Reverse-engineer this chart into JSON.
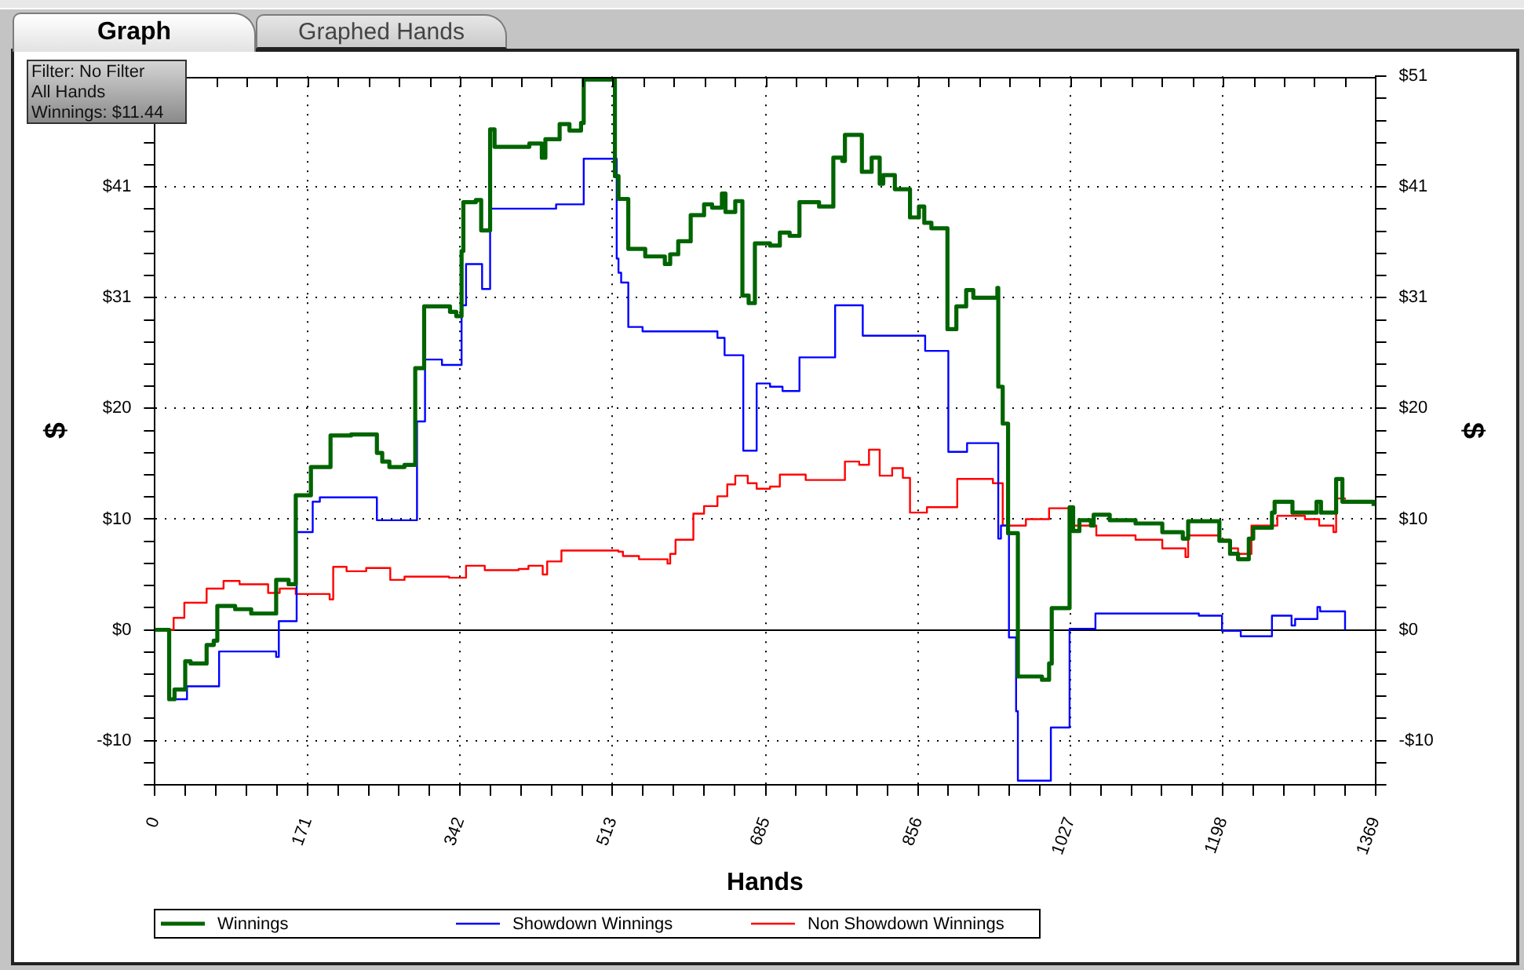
{
  "chart_data": {
    "type": "step",
    "annotations": [
      "Graph",
      "Graphed Hands",
      "Filter: No Filter",
      "All Hands",
      "Winnings: $11.44"
    ],
    "xlabel": "Hands",
    "ylabel": "$",
    "y2label": "$",
    "xlim": [
      0,
      1369
    ],
    "xticks": [
      0,
      {
        "value": 34.2,
        "label": null
      },
      {
        "value": 68.5,
        "label": null
      },
      {
        "value": 102.7,
        "label": null
      },
      {
        "value": 136.9,
        "label": null
      },
      171,
      {
        "value": 205.4,
        "label": null
      },
      {
        "value": 239.6,
        "label": null
      },
      {
        "value": 273.8,
        "label": null
      },
      {
        "value": 308.0,
        "label": null
      },
      342,
      {
        "value": 376.5,
        "label": null
      },
      {
        "value": 410.7,
        "label": null
      },
      {
        "value": 444.9,
        "label": null
      },
      {
        "value": 479.2,
        "label": null
      },
      513,
      {
        "value": 547.6,
        "label": null
      },
      {
        "value": 581.8,
        "label": null
      },
      {
        "value": 616.1,
        "label": null
      },
      {
        "value": 650.3,
        "label": null
      },
      685,
      {
        "value": 718.7,
        "label": null
      },
      {
        "value": 753.0,
        "label": null
      },
      {
        "value": 787.2,
        "label": null
      },
      {
        "value": 821.4,
        "label": null
      },
      856,
      {
        "value": 889.9,
        "label": null
      },
      {
        "value": 924.1,
        "label": null
      },
      {
        "value": 958.3,
        "label": null
      },
      {
        "value": 992.5,
        "label": null
      },
      1027,
      {
        "value": 1061.0,
        "label": null
      },
      {
        "value": 1095.2,
        "label": null
      },
      {
        "value": 1129.4,
        "label": null
      },
      {
        "value": 1163.7,
        "label": null
      },
      1198,
      {
        "value": 1232.1,
        "label": null
      },
      {
        "value": 1266.3,
        "label": null
      },
      {
        "value": 1300.6,
        "label": null
      },
      {
        "value": 1334.8,
        "label": null
      },
      1369
    ],
    "ylim": [
      -14.28,
      51
    ],
    "yticks": [
      {
        "value": -14.28,
        "label": null
      },
      {
        "value": -12.24,
        "label": null
      },
      {
        "value": -10.2,
        "label": "-$10"
      },
      {
        "value": -8.16,
        "label": null
      },
      {
        "value": -6.12,
        "label": null
      },
      {
        "value": -4.08,
        "label": null
      },
      {
        "value": -2.04,
        "label": null
      },
      {
        "value": 0,
        "label": "$0"
      },
      {
        "value": 2.04,
        "label": null
      },
      {
        "value": 4.08,
        "label": null
      },
      {
        "value": 6.12,
        "label": null
      },
      {
        "value": 8.16,
        "label": null
      },
      {
        "value": 10.2,
        "label": "$10"
      },
      {
        "value": 12.24,
        "label": null
      },
      {
        "value": 14.28,
        "label": null
      },
      {
        "value": 16.32,
        "label": null
      },
      {
        "value": 18.36,
        "label": null
      },
      {
        "value": 20.4,
        "label": "$20"
      },
      {
        "value": 22.44,
        "label": null
      },
      {
        "value": 24.48,
        "label": null
      },
      {
        "value": 26.52,
        "label": null
      },
      {
        "value": 28.56,
        "label": null
      },
      {
        "value": 30.6,
        "label": "$31"
      },
      {
        "value": 32.64,
        "label": null
      },
      {
        "value": 34.68,
        "label": null
      },
      {
        "value": 36.72,
        "label": null
      },
      {
        "value": 38.76,
        "label": null
      },
      {
        "value": 40.8,
        "label": "$41"
      },
      {
        "value": 42.84,
        "label": null
      },
      {
        "value": 44.88,
        "label": null
      },
      {
        "value": 46.92,
        "label": null
      },
      {
        "value": 48.96,
        "label": null
      },
      {
        "value": 51,
        "label": null
      }
    ],
    "y2lim": [
      -14.28,
      51
    ],
    "y2ticks": [
      {
        "value": -14.28,
        "label": null
      },
      {
        "value": -12.24,
        "label": null
      },
      {
        "value": -10.2,
        "label": "-$10"
      },
      {
        "value": -8.16,
        "label": null
      },
      {
        "value": -6.12,
        "label": null
      },
      {
        "value": -4.08,
        "label": null
      },
      {
        "value": -2.04,
        "label": null
      },
      {
        "value": 0,
        "label": "$0"
      },
      {
        "value": 2.04,
        "label": null
      },
      {
        "value": 4.08,
        "label": null
      },
      {
        "value": 6.12,
        "label": null
      },
      {
        "value": 8.16,
        "label": null
      },
      {
        "value": 10.2,
        "label": "$10"
      },
      {
        "value": 12.24,
        "label": null
      },
      {
        "value": 14.28,
        "label": null
      },
      {
        "value": 16.32,
        "label": null
      },
      {
        "value": 18.36,
        "label": null
      },
      {
        "value": 20.4,
        "label": "$20"
      },
      {
        "value": 22.44,
        "label": null
      },
      {
        "value": 24.48,
        "label": null
      },
      {
        "value": 26.52,
        "label": null
      },
      {
        "value": 28.56,
        "label": null
      },
      {
        "value": 30.6,
        "label": "$31"
      },
      {
        "value": 32.64,
        "label": null
      },
      {
        "value": 34.68,
        "label": null
      },
      {
        "value": 36.72,
        "label": null
      },
      {
        "value": 38.76,
        "label": null
      },
      {
        "value": 40.8,
        "label": "$41"
      },
      {
        "value": 42.84,
        "label": null
      },
      {
        "value": 44.88,
        "label": null
      },
      {
        "value": 46.92,
        "label": null
      },
      {
        "value": 48.96,
        "label": null
      },
      {
        "value": 51,
        "label": "$51"
      }
    ],
    "grid": true,
    "legend": "bottom",
    "ref_lines": [
      {
        "axis": "y",
        "value": 0,
        "color": "#000000"
      }
    ],
    "series": [
      {
        "name": "Winnings",
        "color": "#006400",
        "x": [
          0,
          16,
          22,
          34,
          40,
          58,
          66,
          70,
          90,
          108,
          136,
          150,
          158,
          175,
          197,
          220,
          249,
          255,
          263,
          280,
          292,
          302,
          331,
          338,
          344,
          346,
          360,
          366,
          376,
          381,
          420,
          434,
          438,
          454,
          465,
          478,
          481,
          516,
          520,
          531,
          550,
          572,
          578,
          587,
          601,
          616,
          625,
          636,
          640,
          651,
          659,
          666,
          673,
          690,
          701,
          712,
          723,
          745,
          761,
          771,
          774,
          793,
          804,
          813,
          817,
          830,
          847,
          857,
          863,
          871,
          889,
          899,
          910,
          918,
          945,
          946,
          951,
          957,
          968,
          995,
          1003,
          1006,
          1026,
          1030,
          1037,
          1050,
          1053,
          1071,
          1100,
          1130,
          1153,
          1159,
          1194,
          1206,
          1215,
          1227,
          1232,
          1253,
          1256,
          1276,
          1303,
          1308,
          1325,
          1332,
          1359,
          1367
        ],
        "values": [
          0,
          -6.4,
          -5.5,
          -2.9,
          -3.1,
          -1.4,
          -1.0,
          2.2,
          1.9,
          1.5,
          4.6,
          4.2,
          12.4,
          15.0,
          17.9,
          18.0,
          16.3,
          15.5,
          15.0,
          15.2,
          24.1,
          29.8,
          29.3,
          28.9,
          34.9,
          39.4,
          39.6,
          36.8,
          46.1,
          44.5,
          44.8,
          43.5,
          45.2,
          46.6,
          46.0,
          46.7,
          50.7,
          41.8,
          39.7,
          35.1,
          34.4,
          33.7,
          34.6,
          35.8,
          38.2,
          39.2,
          38.9,
          40.2,
          38.5,
          39.5,
          30.8,
          30.1,
          35.6,
          35.4,
          36.6,
          36.3,
          39.4,
          39.0,
          43.5,
          43.2,
          45.6,
          42.2,
          43.5,
          41.1,
          41.9,
          40.6,
          38.0,
          39.0,
          37.5,
          37.0,
          27.7,
          29.8,
          31.3,
          30.6,
          31.5,
          22.4,
          19.0,
          8.9,
          -4.3,
          -4.6,
          -3.1,
          2.0,
          11.3,
          9.1,
          10.1,
          9.6,
          10.6,
          10.1,
          9.8,
          9.0,
          8.4,
          10.0,
          8.2,
          7.0,
          6.5,
          8.4,
          9.4,
          10.8,
          11.8,
          10.8,
          11.8,
          10.8,
          13.9,
          11.8,
          11.8,
          11.4
        ]
      },
      {
        "name": "Showdown Winnings",
        "color": "#0000ff",
        "x": [
          0,
          16,
          36,
          72,
          136,
          139,
          159,
          177,
          185,
          249,
          294,
          303,
          322,
          344,
          349,
          367,
          376,
          450,
          481,
          518,
          520,
          523,
          531,
          547,
          631,
          639,
          660,
          675,
          690,
          704,
          723,
          763,
          794,
          864,
          890,
          911,
          946,
          949,
          958,
          966,
          968,
          1005,
          1026,
          1055,
          1171,
          1197,
          1218,
          1253,
          1275,
          1279,
          1304,
          1307,
          1335
        ],
        "values": [
          0,
          -6.4,
          -5.2,
          -2.0,
          -2.5,
          0.8,
          9.0,
          11.8,
          12.2,
          10.1,
          19.2,
          24.9,
          24.4,
          29.9,
          33.7,
          31.4,
          38.8,
          39.2,
          43.4,
          34.2,
          32.9,
          32.0,
          27.9,
          27.5,
          26.9,
          25.3,
          16.5,
          22.7,
          22.4,
          22.0,
          25.1,
          29.9,
          27.1,
          25.7,
          16.4,
          17.2,
          8.4,
          9.6,
          -0.7,
          -7.5,
          -13.9,
          -9.0,
          0.1,
          1.5,
          1.3,
          -0.1,
          -0.6,
          1.3,
          0.4,
          1.0,
          2.1,
          1.7,
          0.0
        ]
      },
      {
        "name": "Non Showdown Winnings",
        "color": "#ff0000",
        "x": [
          0,
          21,
          33,
          58,
          77,
          95,
          127,
          140,
          158,
          196,
          200,
          215,
          237,
          264,
          280,
          330,
          349,
          370,
          408,
          419,
          435,
          440,
          456,
          520,
          525,
          543,
          575,
          578,
          584,
          604,
          616,
          631,
          642,
          651,
          665,
          675,
          690,
          701,
          730,
          774,
          790,
          801,
          813,
          827,
          839,
          847,
          866,
          900,
          940,
          951,
          977,
          1003,
          1026,
          1030,
          1056,
          1100,
          1130,
          1156,
          1159,
          1194,
          1206,
          1215,
          1230,
          1259,
          1290,
          1306,
          1322,
          1325,
          1335
        ],
        "values": [
          0,
          1.1,
          2.5,
          3.8,
          4.5,
          4.2,
          3.4,
          3.8,
          3.3,
          2.8,
          5.8,
          5.4,
          5.7,
          4.6,
          4.9,
          4.8,
          5.9,
          5.5,
          5.6,
          5.9,
          5.1,
          6.3,
          7.3,
          7.2,
          6.8,
          6.5,
          6.1,
          7.0,
          8.3,
          10.7,
          11.4,
          12.3,
          13.4,
          14.2,
          13.5,
          13.0,
          13.2,
          14.3,
          13.8,
          15.5,
          15.2,
          16.6,
          14.2,
          14.9,
          14.0,
          10.8,
          11.3,
          13.9,
          13.5,
          9.6,
          10.2,
          11.2,
          11.3,
          9.6,
          8.7,
          8.3,
          7.5,
          6.7,
          8.7,
          8.3,
          7.5,
          7.0,
          9.6,
          10.5,
          10.2,
          9.6,
          9.0,
          12.1,
          12.0
        ]
      }
    ]
  }
}
